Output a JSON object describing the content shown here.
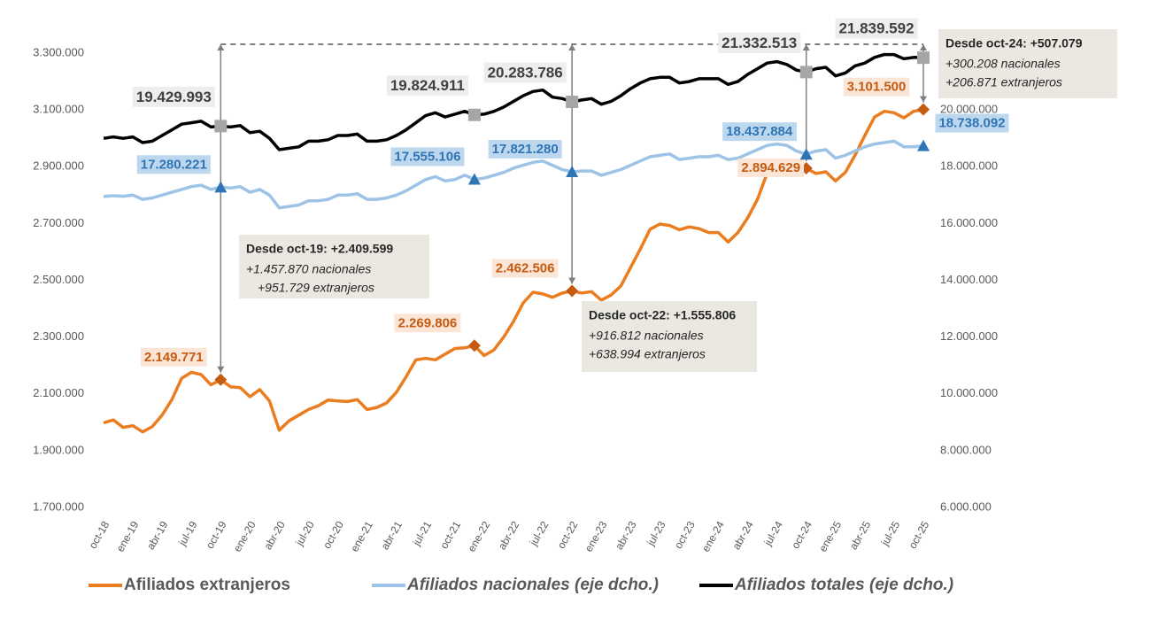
{
  "chart_data": {
    "type": "line",
    "categories": [
      "oct-18",
      null,
      null,
      "ene-19",
      null,
      null,
      "abr-19",
      null,
      null,
      "jul-19",
      null,
      null,
      "oct-19",
      null,
      null,
      "ene-20",
      null,
      null,
      "abr-20",
      null,
      null,
      "jul-20",
      null,
      null,
      "oct-20",
      null,
      null,
      "ene-21",
      null,
      null,
      "abr-21",
      null,
      null,
      "jul-21",
      null,
      null,
      "oct-21",
      null,
      null,
      "ene-22",
      null,
      null,
      "abr-22",
      null,
      null,
      "jul-22",
      null,
      null,
      "oct-22",
      null,
      null,
      "ene-23",
      null,
      null,
      "abr-23",
      null,
      null,
      "jul-23",
      null,
      null,
      "oct-23",
      null,
      null,
      "ene-24",
      null,
      null,
      "abr-24",
      null,
      null,
      "jul-24",
      null,
      null,
      "oct-24",
      null,
      null,
      "ene-25",
      null,
      null,
      "abr-25",
      null,
      null,
      "jul-25",
      null,
      null,
      "oct-25"
    ],
    "ylim": [
      1700000,
      3300000
    ],
    "yticks": [
      {
        "value": 1700000,
        "label": "1.700.000"
      },
      {
        "value": 1900000,
        "label": "1.900.000"
      },
      {
        "value": 2100000,
        "label": "2.100.000"
      },
      {
        "value": 2300000,
        "label": "2.300.000"
      },
      {
        "value": 2500000,
        "label": "2.500.000"
      },
      {
        "value": 2700000,
        "label": "2.700.000"
      },
      {
        "value": 2900000,
        "label": "2.900.000"
      },
      {
        "value": 3100000,
        "label": "3.100.000"
      },
      {
        "value": 3300000,
        "label": "3.300.000"
      }
    ],
    "y2lim": [
      6000000,
      22000000
    ],
    "y2ticks": [
      {
        "value": 6000000,
        "label": "6.000.000"
      },
      {
        "value": 8000000,
        "label": "8.000.000"
      },
      {
        "value": 10000000,
        "label": "10.000.000"
      },
      {
        "value": 12000000,
        "label": "12.000.000"
      },
      {
        "value": 14000000,
        "label": "14.000.000"
      },
      {
        "value": 16000000,
        "label": "16.000.000"
      },
      {
        "value": 18000000,
        "label": "18.000.000"
      },
      {
        "value": 20000000,
        "label": "20.000.000"
      }
    ],
    "series": [
      {
        "name": "Afiliados extranjeros",
        "color": "#e97d20",
        "values": [
          1998000,
          2008000,
          1982000,
          1988000,
          1966000,
          1985000,
          2025000,
          2080000,
          2155000,
          2176000,
          2168000,
          2132000,
          2149771,
          2125000,
          2122000,
          2090000,
          2115000,
          2075000,
          1972000,
          2005000,
          2025000,
          2045000,
          2058000,
          2078000,
          2075000,
          2073000,
          2080000,
          2045000,
          2052000,
          2068000,
          2105000,
          2160000,
          2220000,
          2225000,
          2220000,
          2240000,
          2260000,
          2262000,
          2269806,
          2235000,
          2255000,
          2300000,
          2355000,
          2420000,
          2458000,
          2452000,
          2440000,
          2455000,
          2462506,
          2455000,
          2460000,
          2430000,
          2448000,
          2480000,
          2545000,
          2610000,
          2680000,
          2698000,
          2693000,
          2678000,
          2688000,
          2682000,
          2668000,
          2668000,
          2635000,
          2668000,
          2720000,
          2785000,
          2878000,
          2902000,
          2898000,
          2876000,
          2894629,
          2876000,
          2882000,
          2850000,
          2880000,
          2940000,
          3010000,
          3075000,
          3095000,
          3090000,
          3072000,
          3095000,
          3101500
        ],
        "value_labels": [
          null,
          null,
          null,
          null,
          null,
          null,
          null,
          null,
          null,
          null,
          null,
          null,
          "2.149.771",
          null,
          null,
          null,
          null,
          null,
          null,
          null,
          null,
          null,
          null,
          null,
          null,
          null,
          null,
          null,
          null,
          null,
          null,
          null,
          null,
          null,
          null,
          null,
          null,
          null,
          "2.269.806",
          null,
          null,
          null,
          null,
          null,
          null,
          null,
          null,
          null,
          "2.462.506",
          null,
          null,
          null,
          null,
          null,
          null,
          null,
          null,
          null,
          null,
          null,
          null,
          null,
          null,
          null,
          null,
          null,
          null,
          null,
          null,
          null,
          null,
          null,
          "2.894.629",
          null,
          null,
          null,
          null,
          null,
          null,
          null,
          null,
          null,
          null,
          null,
          "3.101.500"
        ]
      },
      {
        "name": "Afiliados nacionales (eje dcho.)",
        "color": "#9dc3e6",
        "axis": "y2",
        "values": [
          16950000,
          16980000,
          16960000,
          17000000,
          16850000,
          16900000,
          17000000,
          17100000,
          17200000,
          17300000,
          17350000,
          17200000,
          17280221,
          17250000,
          17300000,
          17100000,
          17200000,
          17000000,
          16550000,
          16600000,
          16650000,
          16800000,
          16800000,
          16850000,
          17000000,
          17000000,
          17050000,
          16850000,
          16850000,
          16900000,
          17000000,
          17150000,
          17350000,
          17550000,
          17650000,
          17500000,
          17550000,
          17700000,
          17555106,
          17600000,
          17700000,
          17800000,
          17950000,
          18050000,
          18150000,
          18200000,
          18050000,
          17900000,
          17821280,
          17850000,
          17850000,
          17700000,
          17800000,
          17900000,
          18050000,
          18200000,
          18350000,
          18400000,
          18450000,
          18250000,
          18300000,
          18350000,
          18350000,
          18400000,
          18250000,
          18300000,
          18450000,
          18600000,
          18750000,
          18800000,
          18750000,
          18550000,
          18437884,
          18550000,
          18600000,
          18300000,
          18400000,
          18550000,
          18700000,
          18800000,
          18850000,
          18900000,
          18700000,
          18700000,
          18738092
        ],
        "value_labels": [
          null,
          null,
          null,
          null,
          null,
          null,
          null,
          null,
          null,
          null,
          null,
          null,
          "17.280.221",
          null,
          null,
          null,
          null,
          null,
          null,
          null,
          null,
          null,
          null,
          null,
          null,
          null,
          null,
          null,
          null,
          null,
          null,
          null,
          null,
          null,
          null,
          null,
          null,
          null,
          "17.555.106",
          null,
          null,
          null,
          null,
          null,
          null,
          null,
          null,
          null,
          "17.821.280",
          null,
          null,
          null,
          null,
          null,
          null,
          null,
          null,
          null,
          null,
          null,
          null,
          null,
          null,
          null,
          null,
          null,
          null,
          null,
          null,
          null,
          null,
          null,
          "18.437.884",
          null,
          null,
          null,
          null,
          null,
          null,
          null,
          null,
          null,
          null,
          null,
          "18.738.092"
        ]
      },
      {
        "name": "Afiliados totales (eje dcho.)",
        "color": "#000000",
        "axis": "y2",
        "values": [
          19000000,
          19050000,
          19000000,
          19050000,
          18850000,
          18900000,
          19100000,
          19300000,
          19500000,
          19550000,
          19600000,
          19400000,
          19429993,
          19400000,
          19450000,
          19200000,
          19250000,
          19000000,
          18600000,
          18650000,
          18700000,
          18900000,
          18900000,
          18950000,
          19100000,
          19100000,
          19150000,
          18900000,
          18900000,
          18950000,
          19100000,
          19300000,
          19550000,
          19800000,
          19900000,
          19750000,
          19850000,
          19950000,
          19824911,
          19850000,
          19950000,
          20100000,
          20300000,
          20500000,
          20650000,
          20700000,
          20450000,
          20400000,
          20283786,
          20350000,
          20400000,
          20200000,
          20300000,
          20500000,
          20750000,
          20950000,
          21100000,
          21150000,
          21150000,
          20950000,
          21000000,
          21100000,
          21100000,
          21100000,
          20900000,
          21000000,
          21250000,
          21450000,
          21650000,
          21700000,
          21600000,
          21400000,
          21332513,
          21450000,
          21500000,
          21200000,
          21300000,
          21550000,
          21650000,
          21850000,
          21950000,
          21950000,
          21800000,
          21850000,
          21839592
        ],
        "value_labels": [
          null,
          null,
          null,
          null,
          null,
          null,
          null,
          null,
          null,
          null,
          null,
          null,
          "19.429.993",
          null,
          null,
          null,
          null,
          null,
          null,
          null,
          null,
          null,
          null,
          null,
          null,
          null,
          null,
          null,
          null,
          null,
          null,
          null,
          null,
          null,
          null,
          null,
          null,
          null,
          "19.824.911",
          null,
          null,
          null,
          null,
          null,
          null,
          null,
          null,
          null,
          "20.283.786",
          null,
          null,
          null,
          null,
          null,
          null,
          null,
          null,
          null,
          null,
          null,
          null,
          null,
          null,
          null,
          null,
          null,
          null,
          null,
          null,
          null,
          null,
          null,
          "21.332.513",
          null,
          null,
          null,
          null,
          null,
          null,
          null,
          null,
          null,
          null,
          null,
          "21.839.592"
        ]
      }
    ],
    "annotations": [
      {
        "title": "Desde oct-19: +2.409.599",
        "lines": [
          "+1.457.870 nacionales",
          "+951.729 extranjeros"
        ]
      },
      {
        "title": "Desde oct-22: +1.555.806",
        "lines": [
          "+916.812 nacionales",
          "+638.994 extranjeros"
        ]
      },
      {
        "title": "Desde oct-24: +507.079",
        "lines": [
          "+300.208 nacionales",
          "+206.871 extranjeros"
        ]
      }
    ]
  }
}
